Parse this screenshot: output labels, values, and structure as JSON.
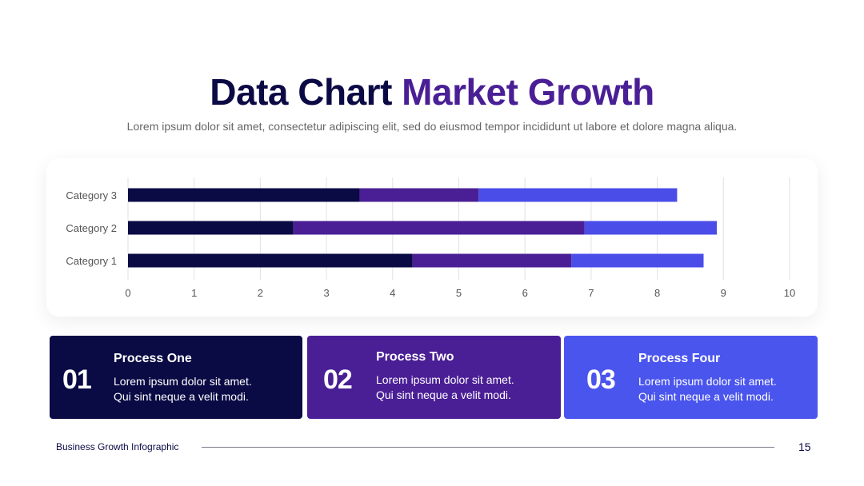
{
  "title": {
    "part1": "Data Chart",
    "part2": "Market Growth"
  },
  "subtitle": "Lorem ipsum dolor sit amet, consectetur adipiscing elit, sed do eiusmod tempor incididunt ut labore et dolore magna aliqua.",
  "colors": {
    "title_dark": "#0c0a45",
    "title_accent": "#4a1f95",
    "series": [
      "#0a0a45",
      "#4a1f95",
      "#4a4de8"
    ]
  },
  "chart_data": {
    "type": "bar",
    "orientation": "horizontal",
    "stacked": true,
    "categories": [
      "Category 1",
      "Category 2",
      "Category 3"
    ],
    "series": [
      {
        "values": [
          4.3,
          2.5,
          3.5
        ]
      },
      {
        "values": [
          2.4,
          4.4,
          1.8
        ]
      },
      {
        "values": [
          2.0,
          2.0,
          3.0
        ]
      }
    ],
    "xlim": [
      0,
      10
    ],
    "xticks": [
      "0",
      "1",
      "2",
      "3",
      "4",
      "5",
      "6",
      "7",
      "8",
      "9",
      "10"
    ],
    "grid": true,
    "legend": "none"
  },
  "cards": [
    {
      "num": "01",
      "title": "Process One",
      "line1": "Lorem ipsum dolor sit amet.",
      "line2": "Qui sint neque a velit modi.",
      "color": "#0a0a45"
    },
    {
      "num": "02",
      "title": "Process Two",
      "line1": "Lorem ipsum dolor sit amet.",
      "line2": "Qui sint neque a velit modi.",
      "color": "#4a1f95"
    },
    {
      "num": "03",
      "title": "Process Four",
      "line1": "Lorem ipsum dolor sit amet.",
      "line2": "Qui sint neque a velit modi.",
      "color": "#4a55ee"
    }
  ],
  "footer": {
    "left": "Business Growth Infographic",
    "page": "15"
  }
}
